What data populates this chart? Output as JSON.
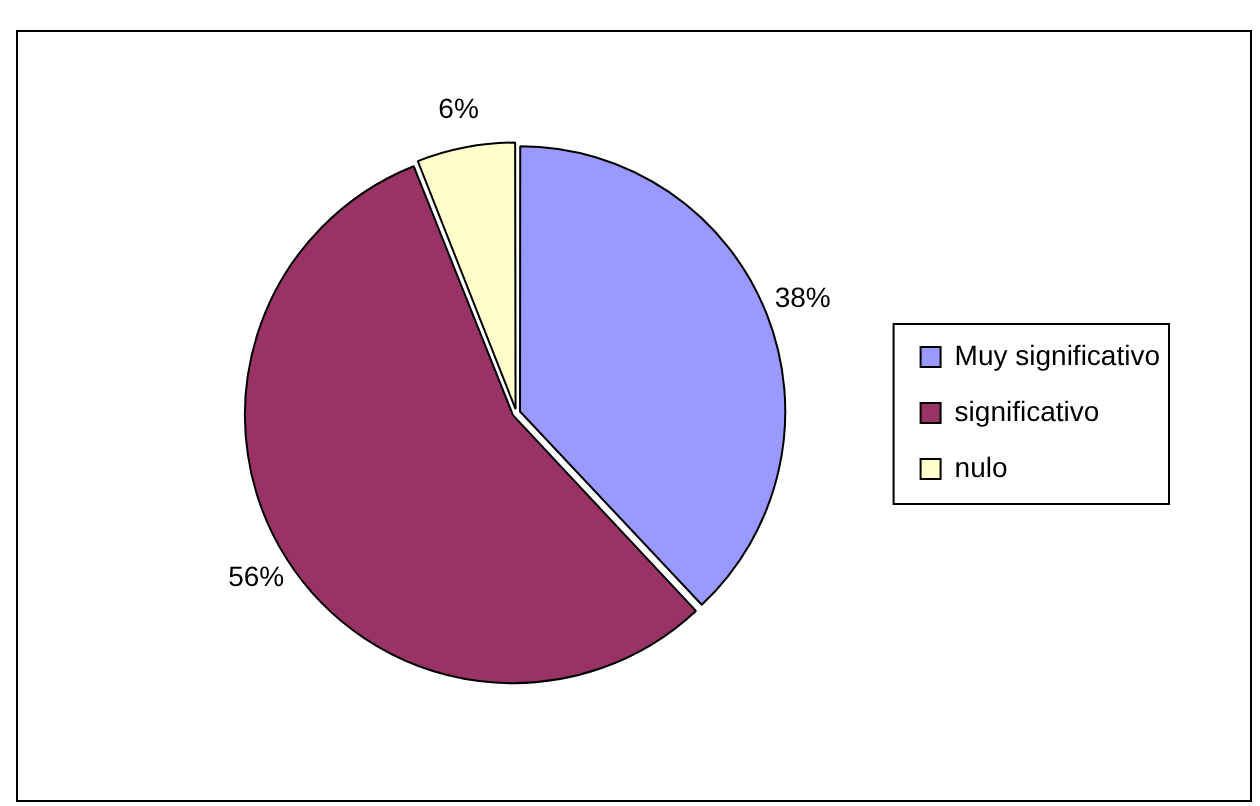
{
  "chart_data": {
    "type": "pie",
    "categories": [
      "Muy significativo",
      "significativo",
      "nulo"
    ],
    "values": [
      38,
      56,
      6
    ],
    "colors": [
      "#9999ff",
      "#993366",
      "#ffffcc"
    ],
    "value_labels": [
      "38%",
      "56%",
      "6%"
    ],
    "legend": "right"
  }
}
